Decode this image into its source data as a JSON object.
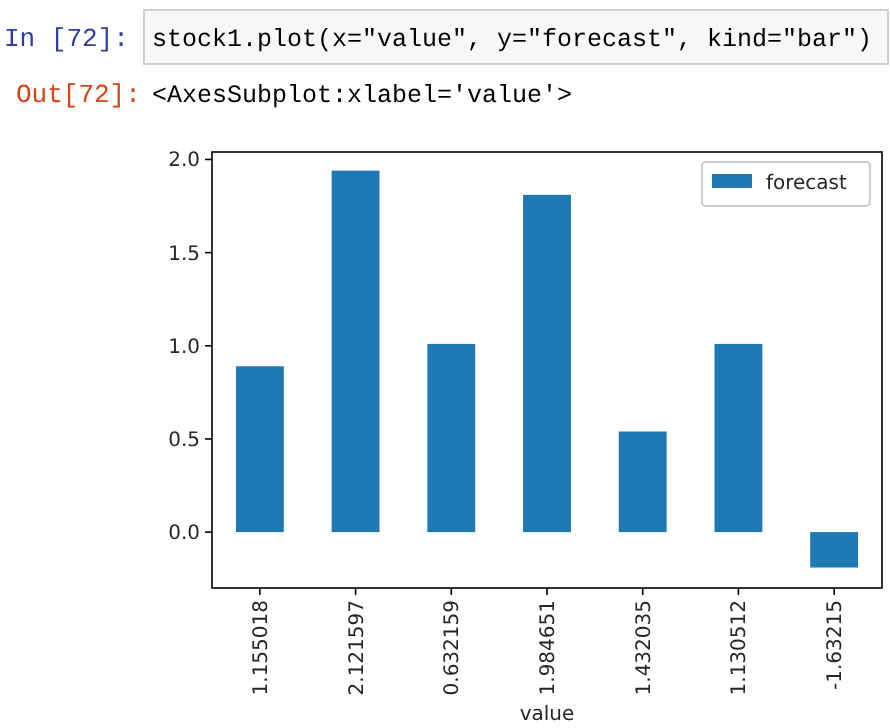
{
  "chart_data": {
    "type": "bar",
    "xlabel": "value",
    "categories": [
      "1.155018",
      "2.121597",
      "0.632159",
      "1.984651",
      "1.432035",
      "1.130512",
      "-1.63215"
    ],
    "series": [
      {
        "name": "forecast",
        "color": "#1f77b4",
        "values": [
          0.89,
          1.94,
          1.01,
          1.81,
          0.54,
          1.01,
          -0.19
        ]
      }
    ],
    "ylim": [
      -0.3,
      2.04
    ],
    "yticks": [
      {
        "value": 0,
        "label": "0.0"
      },
      {
        "value": 0.5,
        "label": "0.5"
      },
      {
        "value": 1,
        "label": "1.0"
      },
      {
        "value": 1.5,
        "label": "1.5"
      },
      {
        "value": 2,
        "label": "2.0"
      }
    ],
    "legend": "top right",
    "grid": false,
    "annotations": [
      "In  [72]:",
      "stock1.plot(x=\"value\", y=\"forecast\", kind=\"bar\")",
      "Out[72]:",
      "<AxesSubplot:xlabel='value'>"
    ]
  }
}
